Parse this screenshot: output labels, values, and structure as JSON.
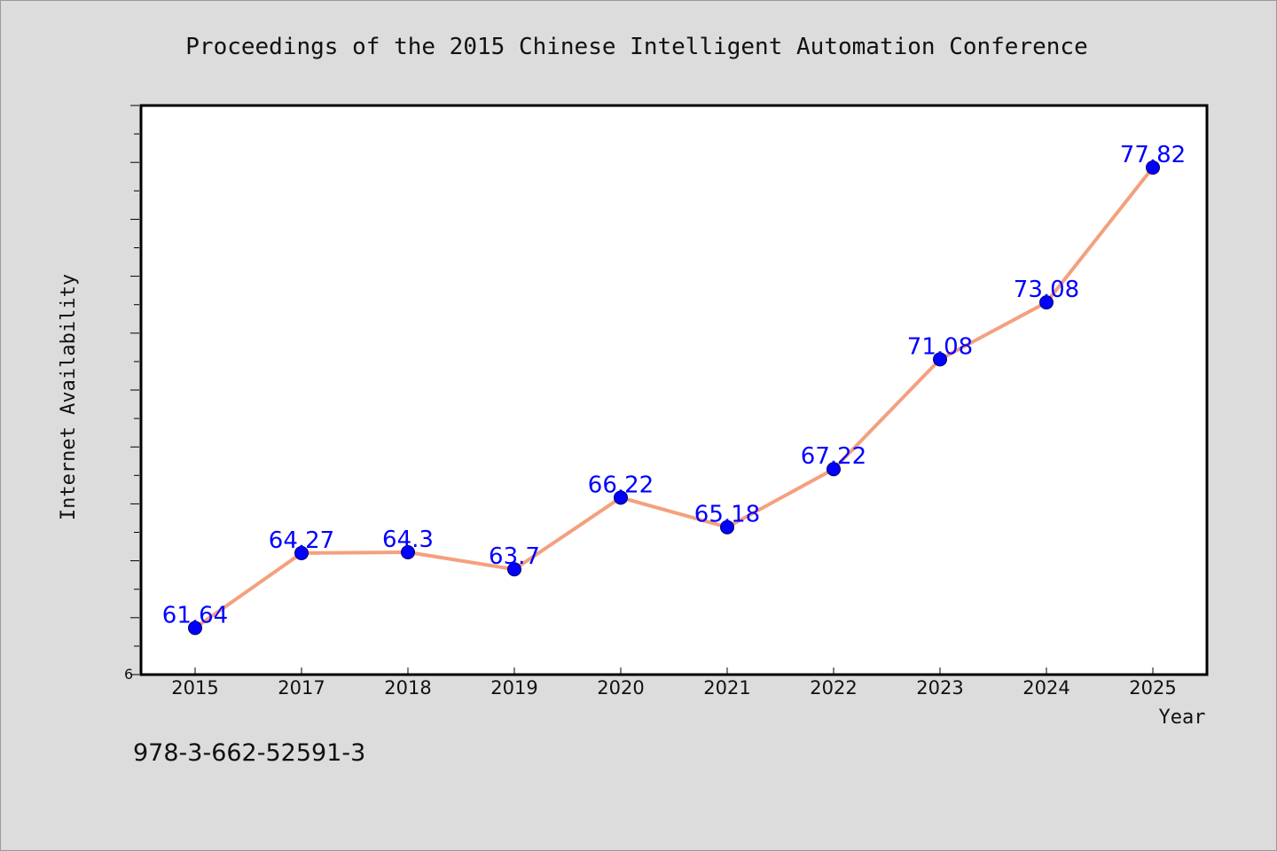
{
  "chart_data": {
    "type": "line",
    "title": "Proceedings of the 2015 Chinese Intelligent Automation Conference",
    "xlabel": "Year",
    "ylabel": "Internet Availability",
    "y_tick_label_visible": "6",
    "categories": [
      "2015",
      "2017",
      "2018",
      "2019",
      "2020",
      "2021",
      "2022",
      "2023",
      "2024",
      "2025"
    ],
    "series": [
      {
        "values": [
          61.64,
          64.27,
          64.3,
          63.7,
          66.22,
          65.18,
          67.22,
          71.08,
          73.08,
          77.82
        ],
        "labels": [
          "61.64",
          "64.27",
          "64.3",
          "63.7",
          "66.22",
          "65.18",
          "67.22",
          "71.08",
          "73.08",
          "77.82"
        ],
        "line_color": "#f4a07e",
        "marker_color": "#0000ff"
      }
    ],
    "ylim": [
      60,
      80
    ],
    "grid": false,
    "legend": "none"
  },
  "footer": {
    "isbn": "978-3-662-52591-3"
  }
}
